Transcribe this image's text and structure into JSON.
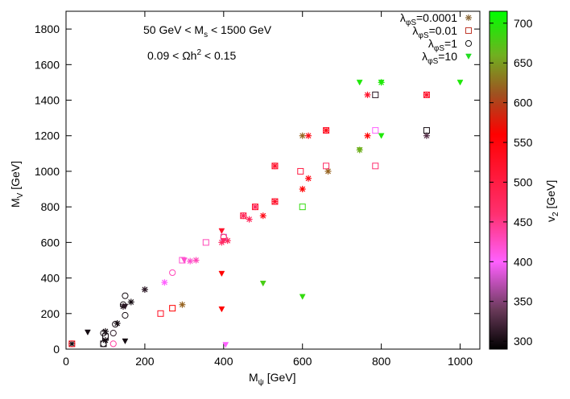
{
  "chart_data": {
    "type": "scatter",
    "xlabel_main": "M",
    "xlabel_sub": "ψ",
    "xlabel_unit": " [GeV]",
    "ylabel_main": "M",
    "ylabel_sub": "V",
    "ylabel_unit": " [GeV]",
    "xlim": [
      0,
      1050
    ],
    "ylim": [
      0,
      1900
    ],
    "xticks": [
      0,
      200,
      400,
      600,
      800,
      1000
    ],
    "yticks": [
      0,
      200,
      400,
      600,
      800,
      1000,
      1200,
      1400,
      1600,
      1800
    ],
    "annotations": [
      {
        "text": "50 GeV < M",
        "sub": "s",
        "tail": " < 1500 GeV"
      },
      {
        "text": "0.09 < Ωh",
        "sup": "2",
        "tail": " < 0.15"
      }
    ],
    "colorbar": {
      "label_main": "v",
      "label_sub": "2",
      "label_unit": " [GeV]",
      "ticks": [
        300,
        350,
        400,
        450,
        500,
        550,
        600,
        650,
        700
      ],
      "range": [
        290,
        715
      ],
      "colormap": [
        {
          "v": 290,
          "color": "#000000"
        },
        {
          "v": 340,
          "color": "#6a3a5a"
        },
        {
          "v": 400,
          "color": "#ff60ff"
        },
        {
          "v": 460,
          "color": "#ff3070"
        },
        {
          "v": 560,
          "color": "#ff0000"
        },
        {
          "v": 610,
          "color": "#a05020"
        },
        {
          "v": 660,
          "color": "#70b020"
        },
        {
          "v": 715,
          "color": "#00ff00"
        }
      ]
    },
    "legend_position": "top-right",
    "series": [
      {
        "name": "λ",
        "name_sub": "φS",
        "name_tail": "=0.0001",
        "marker": "star",
        "legend_color": "#8b6a3c",
        "points": [
          {
            "x": 15,
            "y": 30,
            "v": 300
          },
          {
            "x": 100,
            "y": 50,
            "v": 300
          },
          {
            "x": 100,
            "y": 100,
            "v": 300
          },
          {
            "x": 130,
            "y": 145,
            "v": 300
          },
          {
            "x": 145,
            "y": 240,
            "v": 310
          },
          {
            "x": 165,
            "y": 265,
            "v": 300
          },
          {
            "x": 200,
            "y": 335,
            "v": 310
          },
          {
            "x": 250,
            "y": 375,
            "v": 400
          },
          {
            "x": 295,
            "y": 250,
            "v": 620
          },
          {
            "x": 315,
            "y": 495,
            "v": 420
          },
          {
            "x": 330,
            "y": 500,
            "v": 430
          },
          {
            "x": 395,
            "y": 600,
            "v": 470
          },
          {
            "x": 410,
            "y": 610,
            "v": 480
          },
          {
            "x": 450,
            "y": 750,
            "v": 480
          },
          {
            "x": 465,
            "y": 730,
            "v": 480
          },
          {
            "x": 480,
            "y": 800,
            "v": 480
          },
          {
            "x": 500,
            "y": 750,
            "v": 540
          },
          {
            "x": 530,
            "y": 1030,
            "v": 520
          },
          {
            "x": 530,
            "y": 830,
            "v": 520
          },
          {
            "x": 600,
            "y": 1200,
            "v": 620
          },
          {
            "x": 600,
            "y": 900,
            "v": 560
          },
          {
            "x": 615,
            "y": 1200,
            "v": 540
          },
          {
            "x": 615,
            "y": 960,
            "v": 540
          },
          {
            "x": 660,
            "y": 1230,
            "v": 540
          },
          {
            "x": 665,
            "y": 1000,
            "v": 620
          },
          {
            "x": 745,
            "y": 1120,
            "v": 660
          },
          {
            "x": 765,
            "y": 1200,
            "v": 560
          },
          {
            "x": 765,
            "y": 1430,
            "v": 520
          },
          {
            "x": 800,
            "y": 1500,
            "v": 700
          },
          {
            "x": 915,
            "y": 1430,
            "v": 520
          },
          {
            "x": 915,
            "y": 1200,
            "v": 330
          }
        ]
      },
      {
        "name": "λ",
        "name_sub": "φS",
        "name_tail": "=0.01",
        "marker": "square",
        "legend_color": "#c0392b",
        "points": [
          {
            "x": 15,
            "y": 30,
            "v": 540
          },
          {
            "x": 95,
            "y": 30,
            "v": 300
          },
          {
            "x": 100,
            "y": 70,
            "v": 300
          },
          {
            "x": 240,
            "y": 200,
            "v": 530
          },
          {
            "x": 270,
            "y": 230,
            "v": 560
          },
          {
            "x": 295,
            "y": 500,
            "v": 420
          },
          {
            "x": 355,
            "y": 600,
            "v": 430
          },
          {
            "x": 400,
            "y": 630,
            "v": 380
          },
          {
            "x": 450,
            "y": 750,
            "v": 500
          },
          {
            "x": 480,
            "y": 800,
            "v": 520
          },
          {
            "x": 530,
            "y": 1030,
            "v": 520
          },
          {
            "x": 530,
            "y": 830,
            "v": 520
          },
          {
            "x": 595,
            "y": 1000,
            "v": 500
          },
          {
            "x": 600,
            "y": 800,
            "v": 690
          },
          {
            "x": 660,
            "y": 1230,
            "v": 520
          },
          {
            "x": 660,
            "y": 1030,
            "v": 470
          },
          {
            "x": 785,
            "y": 1430,
            "v": 310
          },
          {
            "x": 785,
            "y": 1230,
            "v": 400
          },
          {
            "x": 785,
            "y": 1030,
            "v": 460
          },
          {
            "x": 915,
            "y": 1430,
            "v": 520
          },
          {
            "x": 915,
            "y": 1230,
            "v": 300
          }
        ]
      },
      {
        "name": "λ",
        "name_sub": "φS",
        "name_tail": "=1",
        "marker": "circle",
        "legend_color": "#111111",
        "points": [
          {
            "x": 95,
            "y": 30,
            "v": 300
          },
          {
            "x": 95,
            "y": 90,
            "v": 300
          },
          {
            "x": 120,
            "y": 30,
            "v": 440
          },
          {
            "x": 120,
            "y": 90,
            "v": 310
          },
          {
            "x": 125,
            "y": 140,
            "v": 300
          },
          {
            "x": 145,
            "y": 250,
            "v": 300
          },
          {
            "x": 150,
            "y": 190,
            "v": 300
          },
          {
            "x": 150,
            "y": 300,
            "v": 300
          },
          {
            "x": 270,
            "y": 430,
            "v": 430
          },
          {
            "x": 400,
            "y": 630,
            "v": 470
          }
        ]
      },
      {
        "name": "λ",
        "name_sub": "φS",
        "name_tail": "=10",
        "marker": "triangle-down",
        "legend_color": "#22dd22",
        "points": [
          {
            "x": 55,
            "y": 95,
            "v": 300
          },
          {
            "x": 150,
            "y": 45,
            "v": 300
          },
          {
            "x": 150,
            "y": 240,
            "v": 310
          },
          {
            "x": 300,
            "y": 500,
            "v": 420
          },
          {
            "x": 395,
            "y": 665,
            "v": 520
          },
          {
            "x": 395,
            "y": 425,
            "v": 560
          },
          {
            "x": 395,
            "y": 225,
            "v": 560
          },
          {
            "x": 400,
            "y": 610,
            "v": 470
          },
          {
            "x": 405,
            "y": 25,
            "v": 400
          },
          {
            "x": 500,
            "y": 370,
            "v": 680
          },
          {
            "x": 600,
            "y": 295,
            "v": 690
          },
          {
            "x": 745,
            "y": 1120,
            "v": 660
          },
          {
            "x": 745,
            "y": 1500,
            "v": 700
          },
          {
            "x": 800,
            "y": 1500,
            "v": 700
          },
          {
            "x": 800,
            "y": 1200,
            "v": 700
          },
          {
            "x": 1000,
            "y": 1500,
            "v": 700
          }
        ]
      }
    ]
  }
}
